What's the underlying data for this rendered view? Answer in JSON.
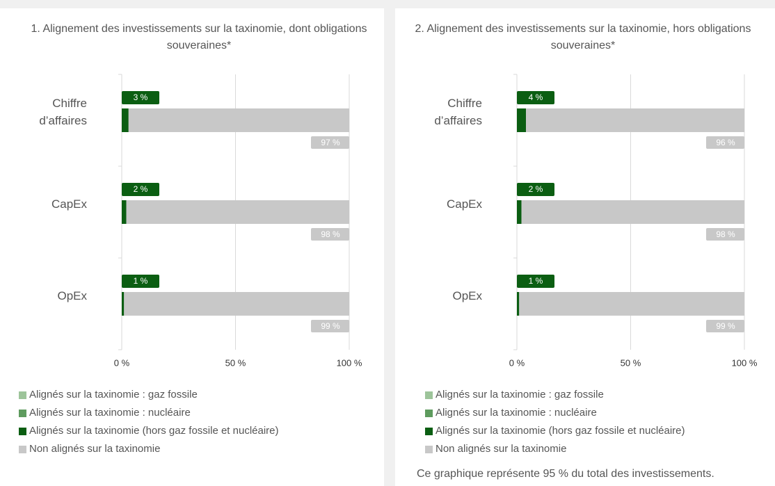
{
  "chart_data": [
    {
      "type": "bar",
      "orientation": "horizontal",
      "stacked": true,
      "title": "1. Alignement des investissements sur la taxinomie, dont obligations souveraines*",
      "categories": [
        "Chiffre d’affaires",
        "CapEx",
        "OpEx"
      ],
      "series": [
        {
          "name": "Alignés sur la taxinomie : gaz fossile",
          "color": "#9dc49a",
          "values": [
            0,
            0,
            0
          ]
        },
        {
          "name": "Alignés sur la taxinomie : nucléaire",
          "color": "#5e9b5e",
          "values": [
            0,
            0,
            0
          ]
        },
        {
          "name": "Alignés sur la taxinomie (hors gaz fossile et nucléaire)",
          "color": "#0b5e12",
          "values": [
            3,
            2,
            1
          ],
          "value_labels": [
            "3 %",
            "2 %",
            "1 %"
          ]
        },
        {
          "name": "Non alignés sur la taxinomie",
          "color": "#c8c8c8",
          "values": [
            97,
            98,
            99
          ],
          "value_labels": [
            "97 %",
            "98 %",
            "99 %"
          ]
        }
      ],
      "xlim": [
        0,
        100
      ],
      "xticks": [
        {
          "value": 0,
          "label": "0 %"
        },
        {
          "value": 50,
          "label": "50 %"
        },
        {
          "value": 100,
          "label": "100 %"
        }
      ],
      "grid": true
    },
    {
      "type": "bar",
      "orientation": "horizontal",
      "stacked": true,
      "title": "2. Alignement des investissements sur la taxinomie, hors obligations souveraines*",
      "categories": [
        "Chiffre d’affaires",
        "CapEx",
        "OpEx"
      ],
      "series": [
        {
          "name": "Alignés sur la taxinomie : gaz fossile",
          "color": "#9dc49a",
          "values": [
            0,
            0,
            0
          ]
        },
        {
          "name": "Alignés sur la taxinomie : nucléaire",
          "color": "#5e9b5e",
          "values": [
            0,
            0,
            0
          ]
        },
        {
          "name": "Alignés sur la taxinomie (hors gaz fossile et nucléaire)",
          "color": "#0b5e12",
          "values": [
            4,
            2,
            1
          ],
          "value_labels": [
            "4 %",
            "2 %",
            "1 %"
          ]
        },
        {
          "name": "Non alignés sur la taxinomie",
          "color": "#c8c8c8",
          "values": [
            96,
            98,
            99
          ],
          "value_labels": [
            "96 %",
            "98 %",
            "99 %"
          ]
        }
      ],
      "xlim": [
        0,
        100
      ],
      "xticks": [
        {
          "value": 0,
          "label": "0 %"
        },
        {
          "value": 50,
          "label": "50 %"
        },
        {
          "value": 100,
          "label": "100 %"
        }
      ],
      "grid": true,
      "note": "Ce graphique représente 95 % du total des investissements."
    }
  ]
}
